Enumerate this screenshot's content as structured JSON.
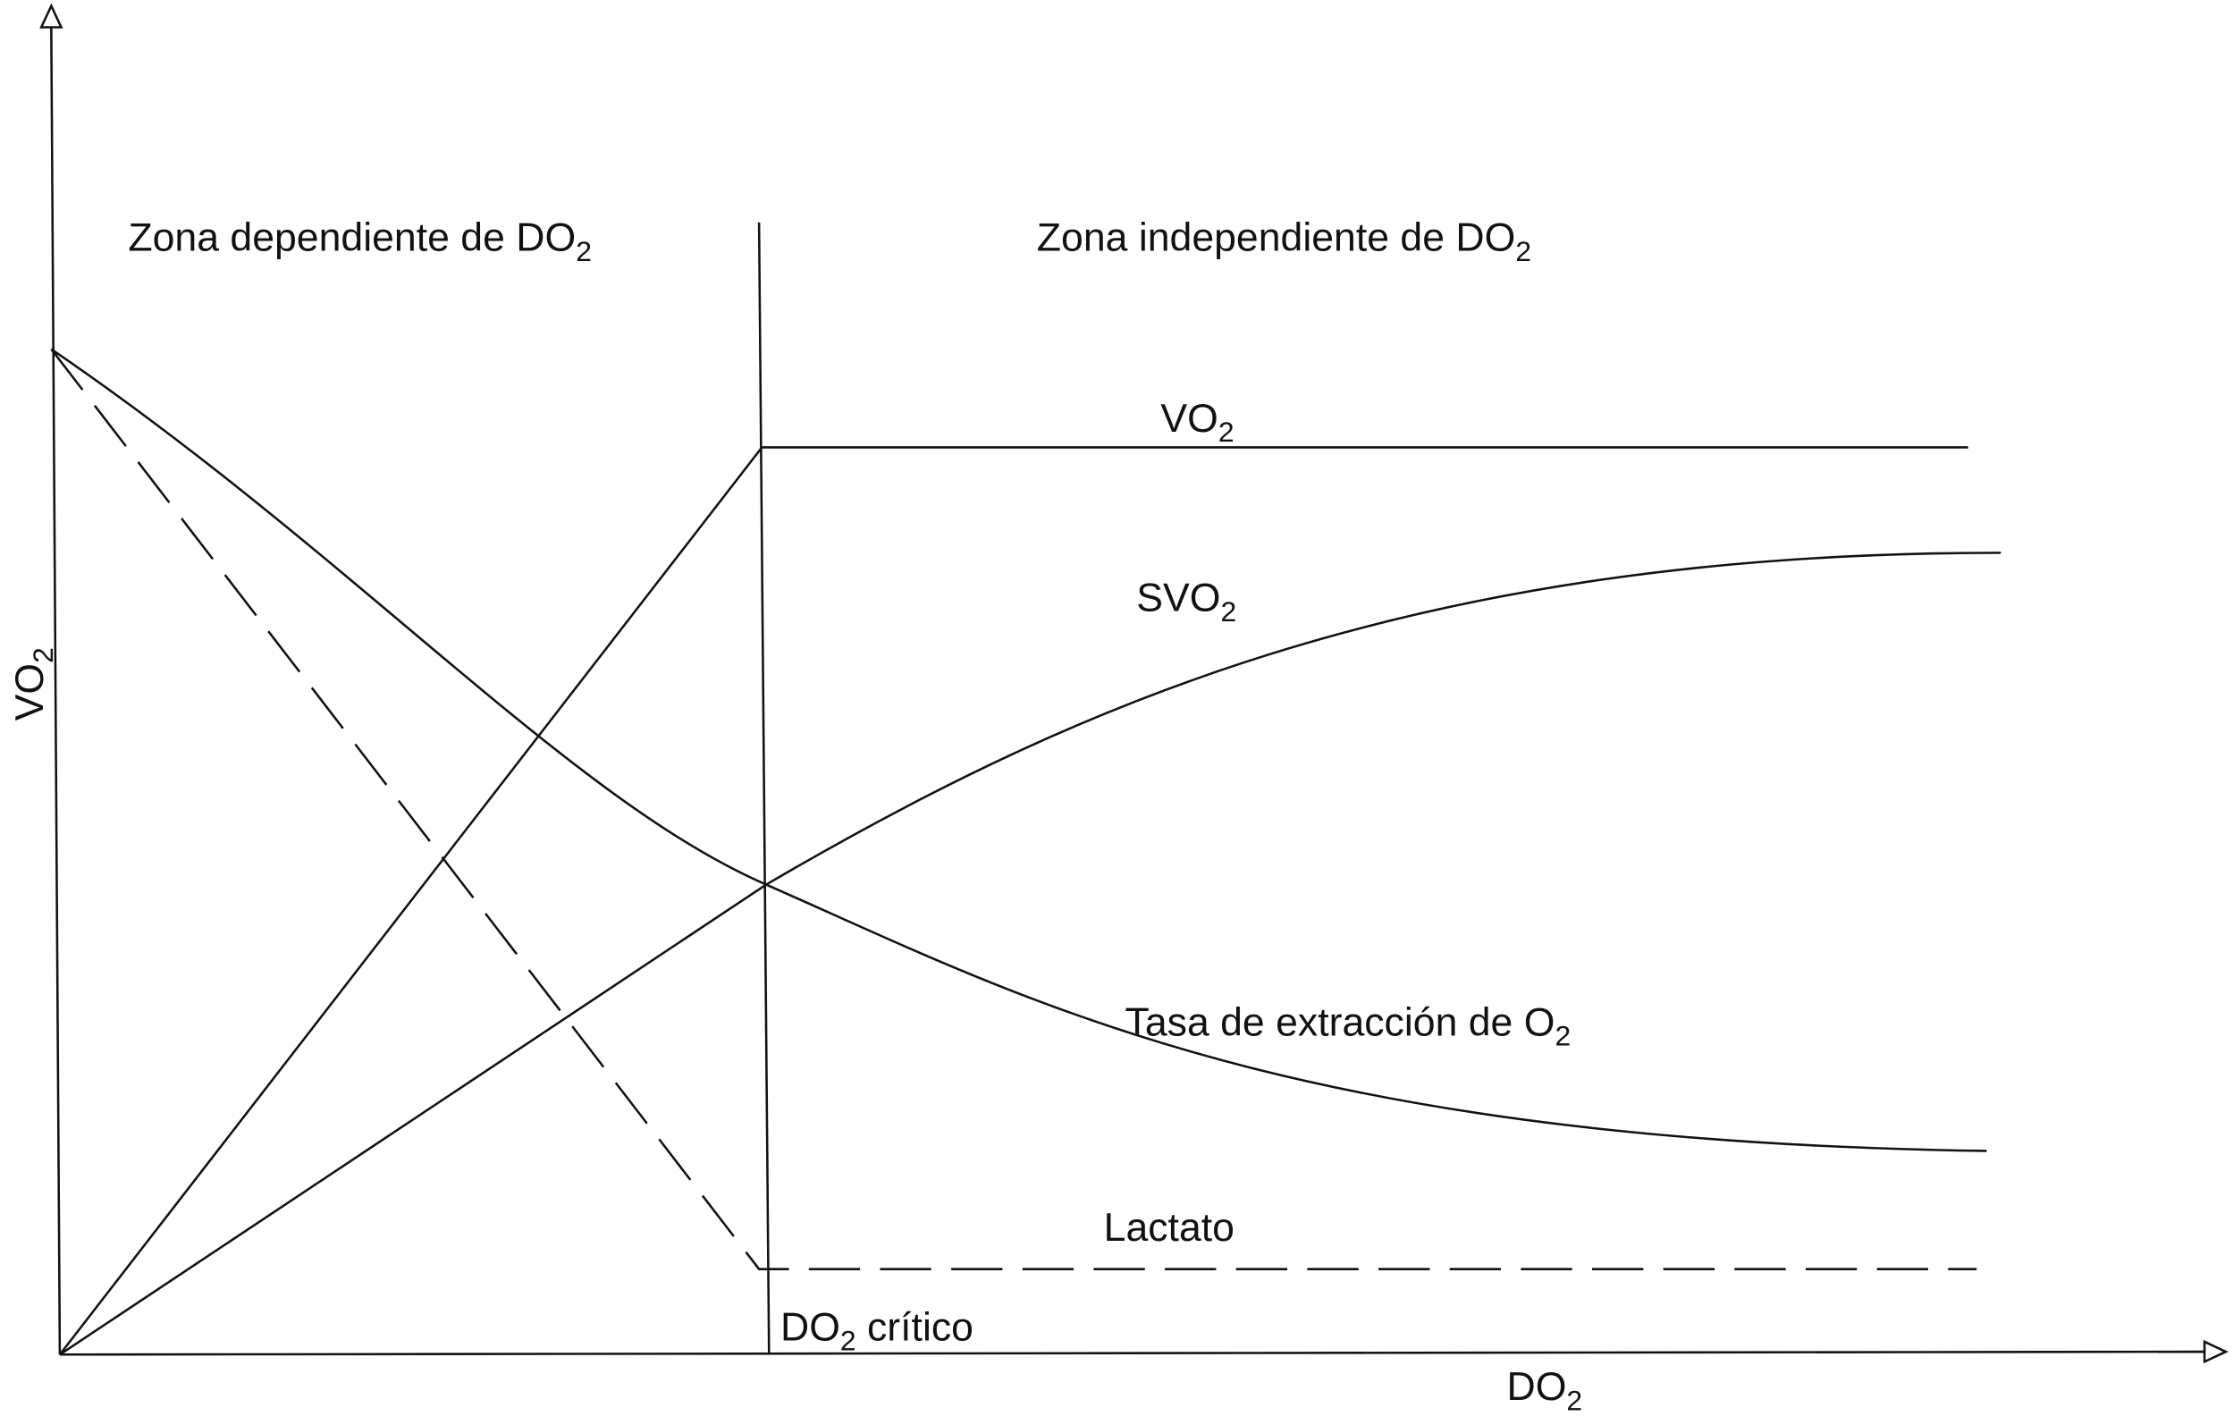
{
  "zones": {
    "dependent": {
      "main": "Zona dependiente de DO",
      "sub": "2"
    },
    "independent": {
      "main": "Zona independiente de DO",
      "sub": "2"
    }
  },
  "axes": {
    "y": {
      "main": "VO",
      "sub": "2"
    },
    "x": {
      "main": "DO",
      "sub": "2"
    }
  },
  "curves": {
    "vo2": {
      "main": "VO",
      "sub": "2"
    },
    "svo2": {
      "main": "SVO",
      "sub": "2"
    },
    "extraction": {
      "main": "Tasa de extracción de O",
      "sub": "2"
    },
    "lactate": {
      "main": "Lactato"
    }
  },
  "critical": {
    "main": "DO",
    "sub": "2",
    "tail": " crítico"
  }
}
